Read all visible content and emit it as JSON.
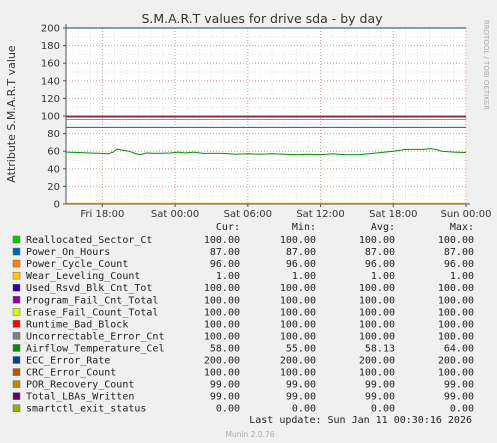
{
  "chart_data": {
    "type": "line",
    "title": "S.M.A.R.T values for drive sda - by day",
    "ylabel": "Attribute S.M.A.R.T value",
    "xlabel": "",
    "ylim": [
      0,
      200
    ],
    "yticks": [
      0,
      20,
      40,
      60,
      80,
      100,
      120,
      140,
      160,
      180,
      200
    ],
    "x_range_hours": [
      0,
      33
    ],
    "x_tick_hours": [
      3,
      9,
      15,
      21,
      27,
      33
    ],
    "xtick_labels": [
      "Fri 18:00",
      "Sat 00:00",
      "Sat 06:00",
      "Sat 12:00",
      "Sat 18:00",
      "Sun 00:00"
    ],
    "grid": true,
    "series": [
      {
        "name": "Reallocated_Sector_Ct",
        "color": "#00cc00",
        "values": [
          [
            0,
            100
          ],
          [
            33,
            100
          ]
        ]
      },
      {
        "name": "Power_On_Hours",
        "color": "#0066b3",
        "values": [
          [
            0,
            87
          ],
          [
            33,
            87
          ]
        ]
      },
      {
        "name": "Power_Cycle_Count",
        "color": "#ff8000",
        "values": [
          [
            0,
            96
          ],
          [
            33,
            96
          ]
        ]
      },
      {
        "name": "Wear_Leveling_Count",
        "color": "#ffcc00",
        "values": [
          [
            0,
            1
          ],
          [
            33,
            1
          ]
        ]
      },
      {
        "name": "Used_Rsvd_Blk_Cnt_Tot",
        "color": "#330099",
        "values": [
          [
            0,
            100
          ],
          [
            33,
            100
          ]
        ]
      },
      {
        "name": "Program_Fail_Cnt_Total",
        "color": "#990099",
        "values": [
          [
            0,
            100
          ],
          [
            33,
            100
          ]
        ]
      },
      {
        "name": "Erase_Fail_Count_Total",
        "color": "#ccff00",
        "values": [
          [
            0,
            100
          ],
          [
            33,
            100
          ]
        ]
      },
      {
        "name": "Runtime_Bad_Block",
        "color": "#ff0000",
        "values": [
          [
            0,
            100
          ],
          [
            33,
            100
          ]
        ]
      },
      {
        "name": "Uncorrectable_Error_Cnt",
        "color": "#808080",
        "values": [
          [
            0,
            100
          ],
          [
            33,
            100
          ]
        ]
      },
      {
        "name": "Airflow_Temperature_Cel",
        "color": "#008f00",
        "values": [
          [
            0,
            59
          ],
          [
            1,
            58.5
          ],
          [
            2,
            58
          ],
          [
            3,
            57.5
          ],
          [
            3.5,
            57
          ],
          [
            3.9,
            59
          ],
          [
            4.2,
            62.5
          ],
          [
            4.7,
            61
          ],
          [
            5.2,
            60
          ],
          [
            5.6,
            58
          ],
          [
            6.1,
            56
          ],
          [
            6.6,
            58
          ],
          [
            7.5,
            57.5
          ],
          [
            8.6,
            58
          ],
          [
            9.3,
            59
          ],
          [
            9.8,
            58
          ],
          [
            10.5,
            59
          ],
          [
            11.3,
            57.5
          ],
          [
            13,
            57.5
          ],
          [
            14,
            56.5
          ],
          [
            15,
            57
          ],
          [
            16,
            56.5
          ],
          [
            17,
            57
          ],
          [
            18,
            56.5
          ],
          [
            19,
            56
          ],
          [
            20,
            56.5
          ],
          [
            21,
            56
          ],
          [
            22,
            57
          ],
          [
            23,
            56
          ],
          [
            24,
            56
          ],
          [
            25,
            57
          ],
          [
            26,
            58.5
          ],
          [
            27,
            60
          ],
          [
            28,
            62
          ],
          [
            29.5,
            62
          ],
          [
            30,
            63
          ],
          [
            30.5,
            62
          ],
          [
            31,
            60
          ],
          [
            32,
            59
          ],
          [
            33,
            58.5
          ]
        ]
      },
      {
        "name": "ECC_Error_Rate",
        "color": "#00487d",
        "values": [
          [
            0,
            200
          ],
          [
            33,
            200
          ]
        ]
      },
      {
        "name": "CRC_Error_Count",
        "color": "#b35a00",
        "values": [
          [
            0,
            100
          ],
          [
            33,
            100
          ]
        ]
      },
      {
        "name": "POR_Recovery_Count",
        "color": "#b38f00",
        "values": [
          [
            0,
            99
          ],
          [
            33,
            99
          ]
        ]
      },
      {
        "name": "Total_LBAs_Written",
        "color": "#6b006b",
        "values": [
          [
            0,
            99
          ],
          [
            33,
            99
          ]
        ]
      },
      {
        "name": "smartctl_exit_status",
        "color": "#8fb300",
        "values": [
          [
            0,
            0
          ],
          [
            33,
            0
          ]
        ]
      }
    ]
  },
  "side_label": "RRDTOOL / TOBI OETIKER",
  "table": {
    "headers": [
      "Cur:",
      "Min:",
      "Avg:",
      "Max:"
    ],
    "rows": [
      {
        "name": "Reallocated_Sector_Ct",
        "color": "#00cc00",
        "cur": "100.00",
        "min": "100.00",
        "avg": "100.00",
        "max": "100.00"
      },
      {
        "name": "Power_On_Hours",
        "color": "#0066b3",
        "cur": "87.00",
        "min": "87.00",
        "avg": "87.00",
        "max": "87.00"
      },
      {
        "name": "Power_Cycle_Count",
        "color": "#ff8000",
        "cur": "96.00",
        "min": "96.00",
        "avg": "96.00",
        "max": "96.00"
      },
      {
        "name": "Wear_Leveling_Count",
        "color": "#ffcc00",
        "cur": "1.00",
        "min": "1.00",
        "avg": "1.00",
        "max": "1.00"
      },
      {
        "name": "Used_Rsvd_Blk_Cnt_Tot",
        "color": "#330099",
        "cur": "100.00",
        "min": "100.00",
        "avg": "100.00",
        "max": "100.00"
      },
      {
        "name": "Program_Fail_Cnt_Total",
        "color": "#990099",
        "cur": "100.00",
        "min": "100.00",
        "avg": "100.00",
        "max": "100.00"
      },
      {
        "name": "Erase_Fail_Count_Total",
        "color": "#ccff00",
        "cur": "100.00",
        "min": "100.00",
        "avg": "100.00",
        "max": "100.00"
      },
      {
        "name": "Runtime_Bad_Block",
        "color": "#ff0000",
        "cur": "100.00",
        "min": "100.00",
        "avg": "100.00",
        "max": "100.00"
      },
      {
        "name": "Uncorrectable_Error_Cnt",
        "color": "#808080",
        "cur": "100.00",
        "min": "100.00",
        "avg": "100.00",
        "max": "100.00"
      },
      {
        "name": "Airflow_Temperature_Cel",
        "color": "#008f00",
        "cur": "58.00",
        "min": "55.00",
        "avg": "58.13",
        "max": "64.00"
      },
      {
        "name": "ECC_Error_Rate",
        "color": "#00487d",
        "cur": "200.00",
        "min": "200.00",
        "avg": "200.00",
        "max": "200.00"
      },
      {
        "name": "CRC_Error_Count",
        "color": "#b35a00",
        "cur": "100.00",
        "min": "100.00",
        "avg": "100.00",
        "max": "100.00"
      },
      {
        "name": "POR_Recovery_Count",
        "color": "#b38f00",
        "cur": "99.00",
        "min": "99.00",
        "avg": "99.00",
        "max": "99.00"
      },
      {
        "name": "Total_LBAs_Written",
        "color": "#6b006b",
        "cur": "99.00",
        "min": "99.00",
        "avg": "99.00",
        "max": "99.00"
      },
      {
        "name": "smartctl_exit_status",
        "color": "#8fb300",
        "cur": "0.00",
        "min": "0.00",
        "avg": "0.00",
        "max": "0.00"
      }
    ]
  },
  "last_update": "Last update: Sun Jan 11 00:30:16 2026",
  "footer": "Munin 2.0.76"
}
